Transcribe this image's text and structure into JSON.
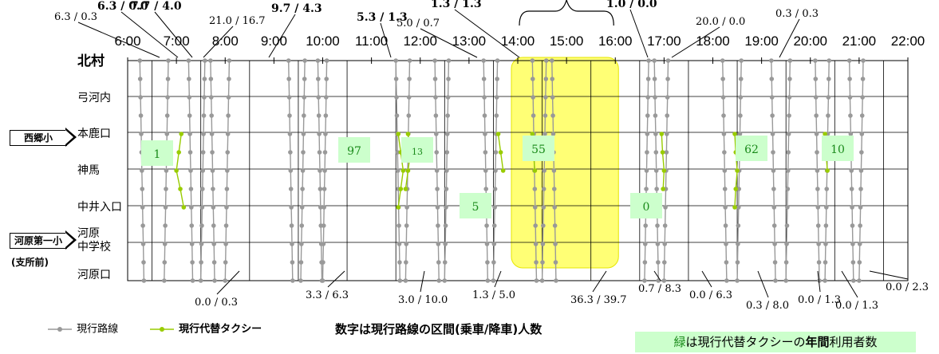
{
  "chart_data": {
    "type": "line",
    "x_axis": {
      "ticks": [
        "6:00",
        "7:00",
        "8:00",
        "9:00",
        "10:00",
        "11:00",
        "12:00",
        "13:00",
        "14:00",
        "15:00",
        "16:00",
        "17:00",
        "18:00",
        "19:00",
        "20:00",
        "21:00",
        "22:00"
      ]
    },
    "y_axis": {
      "stops": [
        "北村",
        "弓河内",
        "本鹿口",
        "神馬",
        "中井入口",
        "河原中学校",
        "河原口"
      ]
    },
    "highlight": {
      "from": "14:00",
      "to": "16:00"
    },
    "series": [
      {
        "name": "現行路線",
        "color": "#999999"
      },
      {
        "name": "現行代替タクシー",
        "color": "#99cc00"
      }
    ],
    "yearly_taxi_users": [
      "1",
      "97",
      "13",
      "55",
      "5",
      "0",
      "62",
      "10"
    ],
    "top_annotations": [
      {
        "label": "6.3 / 0.3",
        "bold": false
      },
      {
        "label": "6.3 / 0.0",
        "bold": true
      },
      {
        "label": "7.7 / 4.0",
        "bold": true
      },
      {
        "label": "21.0 / 16.7",
        "bold": false
      },
      {
        "label": "9.7 / 4.3",
        "bold": true
      },
      {
        "label": "5.3 / 1.3",
        "bold": true
      },
      {
        "label": "5.0 / 0.7",
        "bold": false
      },
      {
        "label": "1.3 / 1.3",
        "bold": true
      },
      {
        "label": "1.0 / 0.0",
        "bold": true
      },
      {
        "label": "20.0 / 0.0",
        "bold": false
      },
      {
        "label": "0.3 / 0.3",
        "bold": false
      }
    ],
    "bottom_annotations": [
      {
        "label": "0.0 / 0.3",
        "bold": false
      },
      {
        "label": "3.3 / 6.3",
        "bold": false
      },
      {
        "label": "3.0 / 10.0",
        "bold": false
      },
      {
        "label": "1.3 / 5.0",
        "bold": false
      },
      {
        "label": "36.3 / 39.7",
        "bold": false
      },
      {
        "label": "0.7 / 8.3",
        "bold": false
      },
      {
        "label": "0.0 / 6.3",
        "bold": false
      },
      {
        "label": "0.3 / 8.0",
        "bold": false
      },
      {
        "label": "0.0 / 1.3",
        "bold": false
      },
      {
        "label": "0.0 / 1.3",
        "bold": false
      },
      {
        "label": "0.0 / 2.3",
        "bold": false
      }
    ]
  },
  "schools": [
    "西郷小",
    "河原第一小",
    "(支所前)"
  ],
  "legend": {
    "route": "現行路線",
    "taxi": "現行代替タクシー"
  },
  "note": "数字は現行路線の区間(乗車/降車)人数",
  "green_note": {
    "g1": "緑",
    "p1": "は現行代替タクシーの",
    "p2": "年間",
    "p3": "利用者数"
  }
}
